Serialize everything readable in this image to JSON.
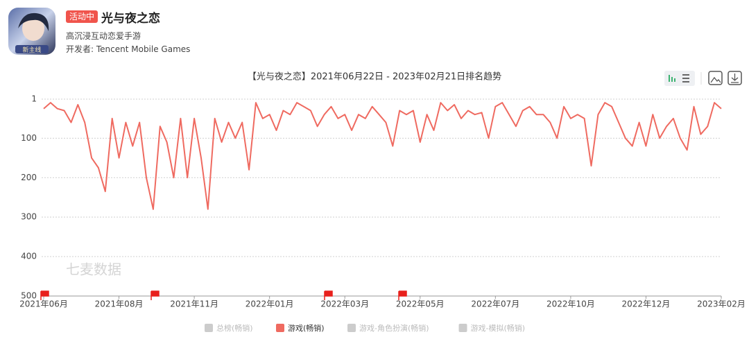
{
  "header": {
    "badge": "活动中",
    "title": "光与夜之恋",
    "subtitle": "高沉浸互动恋爱手游",
    "developer": "开发者: Tencent Mobile Games"
  },
  "chart_data": {
    "type": "line",
    "title": "【光与夜之恋】2021年06月22日 - 2023年02月21日排名趋势",
    "watermark": "七麦数据",
    "y_inverted": true,
    "ylim": [
      1,
      500
    ],
    "yticks": [
      1,
      100,
      200,
      300,
      400,
      500
    ],
    "grid": true,
    "categories": [
      "2021年06月",
      null,
      null,
      null,
      null,
      null,
      null,
      null,
      null,
      null,
      null,
      "2021年08月",
      null,
      null,
      null,
      null,
      null,
      null,
      null,
      null,
      null,
      null,
      "2021年11月",
      null,
      null,
      null,
      null,
      null,
      null,
      null,
      null,
      null,
      null,
      "2022年01月",
      null,
      null,
      null,
      null,
      null,
      null,
      null,
      null,
      null,
      null,
      "2022年03月",
      null,
      null,
      null,
      null,
      null,
      null,
      null,
      null,
      null,
      null,
      "2022年05月",
      null,
      null,
      null,
      null,
      null,
      null,
      null,
      null,
      null,
      null,
      "2022年07月",
      null,
      null,
      null,
      null,
      null,
      null,
      null,
      null,
      null,
      null,
      "2022年10月",
      null,
      null,
      null,
      null,
      null,
      null,
      null,
      null,
      null,
      null,
      "2022年12月",
      null,
      null,
      null,
      null,
      null,
      null,
      null,
      null,
      null,
      null,
      "2023年02月"
    ],
    "series": [
      {
        "name": "游戏(畅销)",
        "color": "#ef6a60",
        "values": [
          25,
          10,
          25,
          30,
          60,
          15,
          60,
          150,
          175,
          235,
          50,
          150,
          60,
          120,
          60,
          200,
          280,
          70,
          110,
          200,
          50,
          200,
          50,
          150,
          280,
          50,
          110,
          60,
          100,
          60,
          180,
          10,
          50,
          40,
          80,
          30,
          40,
          10,
          20,
          30,
          70,
          40,
          20,
          50,
          40,
          80,
          40,
          50,
          20,
          40,
          60,
          120,
          30,
          40,
          30,
          110,
          40,
          80,
          10,
          30,
          15,
          50,
          30,
          40,
          35,
          100,
          20,
          10,
          40,
          70,
          30,
          20,
          40,
          40,
          60,
          100,
          20,
          50,
          40,
          50,
          170,
          40,
          10,
          20,
          60,
          100,
          120,
          60,
          120,
          40,
          100,
          70,
          50,
          100,
          130,
          20,
          90,
          70,
          10,
          25
        ]
      }
    ],
    "legend": [
      {
        "name": "总榜(畅销)",
        "color": "#cccccc"
      },
      {
        "name": "游戏(畅销)",
        "color": "#ef6a60"
      },
      {
        "name": "游戏-角色扮演(畅销)",
        "color": "#cccccc"
      },
      {
        "name": "游戏-模拟(畅销)",
        "color": "#cccccc"
      }
    ],
    "legend_position": "bottom"
  }
}
